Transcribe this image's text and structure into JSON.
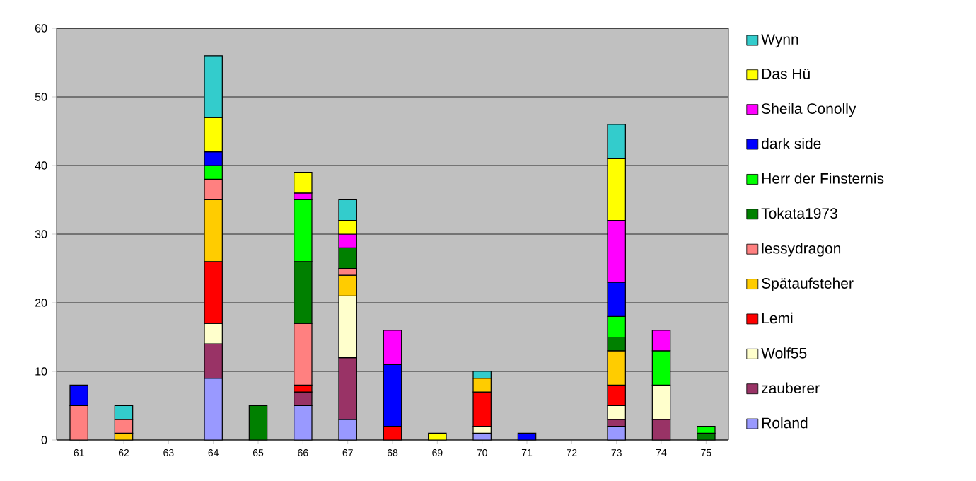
{
  "chart_data": {
    "type": "bar",
    "stacked": true,
    "categories": [
      "61",
      "62",
      "63",
      "64",
      "65",
      "66",
      "67",
      "68",
      "69",
      "70",
      "71",
      "72",
      "73",
      "74",
      "75"
    ],
    "series": [
      {
        "name": "Roland",
        "color": "#9999ff",
        "values": [
          null,
          null,
          null,
          9,
          null,
          5,
          3,
          null,
          null,
          1,
          null,
          null,
          2,
          null,
          null
        ]
      },
      {
        "name": "zauberer",
        "color": "#993366",
        "values": [
          null,
          null,
          null,
          5,
          null,
          2,
          9,
          null,
          null,
          null,
          null,
          null,
          1,
          3,
          null
        ]
      },
      {
        "name": "Wolf55",
        "color": "#ffffcc",
        "values": [
          null,
          null,
          null,
          3,
          null,
          null,
          9,
          null,
          null,
          1,
          null,
          null,
          2,
          5,
          null
        ]
      },
      {
        "name": "Lemi",
        "color": "#ff0000",
        "values": [
          null,
          null,
          null,
          9,
          null,
          1,
          null,
          2,
          null,
          5,
          null,
          null,
          3,
          null,
          null
        ]
      },
      {
        "name": "Spätaufsteher",
        "color": "#ffcc00",
        "values": [
          null,
          1,
          null,
          9,
          null,
          null,
          3,
          null,
          null,
          2,
          null,
          null,
          5,
          null,
          null
        ]
      },
      {
        "name": "lessydragon",
        "color": "#ff8080",
        "values": [
          5,
          2,
          null,
          3,
          null,
          9,
          1,
          null,
          null,
          null,
          null,
          null,
          null,
          null,
          null
        ]
      },
      {
        "name": "Tokata1973",
        "color": "#008000",
        "values": [
          null,
          null,
          null,
          null,
          5,
          9,
          3,
          null,
          null,
          null,
          null,
          null,
          2,
          null,
          1
        ]
      },
      {
        "name": "Herr der Finsternis",
        "color": "#00ff00",
        "values": [
          null,
          null,
          null,
          2,
          null,
          9,
          null,
          null,
          null,
          null,
          null,
          null,
          3,
          5,
          1
        ]
      },
      {
        "name": "dark side",
        "color": "#0000ff",
        "values": [
          3,
          null,
          null,
          2,
          null,
          null,
          null,
          9,
          null,
          null,
          1,
          null,
          5,
          null,
          null
        ]
      },
      {
        "name": "Sheila Conolly",
        "color": "#ff00ff",
        "values": [
          null,
          null,
          null,
          null,
          null,
          1,
          2,
          5,
          null,
          null,
          null,
          null,
          9,
          3,
          null
        ]
      },
      {
        "name": "Das Hü",
        "color": "#ffff00",
        "values": [
          null,
          null,
          null,
          5,
          null,
          3,
          2,
          null,
          1,
          null,
          null,
          null,
          9,
          null,
          null
        ]
      },
      {
        "name": "Wynn",
        "color": "#33cccc",
        "values": [
          null,
          2,
          null,
          9,
          null,
          null,
          3,
          null,
          null,
          1,
          null,
          null,
          5,
          null,
          null
        ]
      }
    ],
    "ylim": [
      0,
      60
    ],
    "yticks": [
      0,
      10,
      20,
      30,
      40,
      50,
      60
    ],
    "grid": "y",
    "legend": "right"
  }
}
